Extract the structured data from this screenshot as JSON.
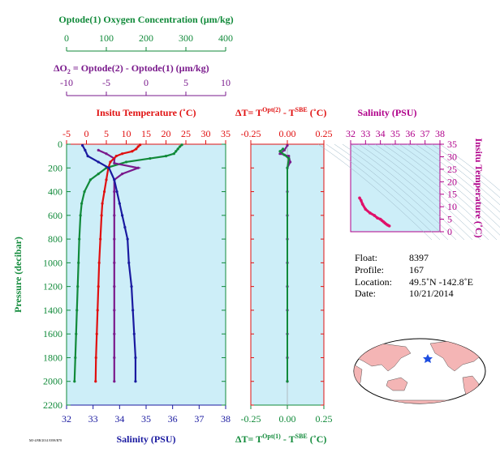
{
  "header": {
    "oxygen_axis_title": "Optode(1) Oxygen Concentration (µm/kg)",
    "delta_o2_title_a": "ΔO",
    "delta_o2_sub": "2",
    "delta_o2_title_b": " = Optode(2) - Optode(1)     (µm/kg)",
    "temp_axis_title": "Insitu Temperature (˚C)",
    "dt_top_title_a": "ΔT= T",
    "dt_top_sup_a": "Opt(2)",
    "dt_top_title_b": " - T",
    "dt_top_sup_b": "SBE",
    "dt_top_title_c": " (˚C)",
    "salinity_ts_title": "Salinity (PSU)"
  },
  "footer": {
    "salinity_axis_title": "Salinity (PSU)",
    "dt_bottom_title_a": "ΔT= T",
    "dt_bottom_sup_a": "Opt(1)",
    "dt_bottom_title_b": " - T",
    "dt_bottom_sup_b": "SBE",
    "dt_bottom_title_c": " (˚C)",
    "tiny_stamp": "MJ-4/8B/2014 8398/B78"
  },
  "left_axis": {
    "title": "Pressure (decibar)"
  },
  "ts_axis": {
    "title": "Insitu Temperature (˚C)"
  },
  "info": {
    "float_label": "Float:",
    "float_value": "8397",
    "profile_label": "Profile:",
    "profile_value": "167",
    "location_label": "Location:",
    "location_value": "49.5˚N  -142.8˚E",
    "date_label": "Date:",
    "date_value": "10/21/2014"
  },
  "colors": {
    "panel_bg": "#cdeef8",
    "oxygen": "#118a3a",
    "delta_o2": "#7a1a8c",
    "temperature": "#e01010",
    "salinity": "#1a1aa0",
    "ts_curve": "#e0106a",
    "axis_magenta": "#b0008a"
  },
  "chart_data": [
    {
      "type": "line",
      "panel": "profiles",
      "y_axis": {
        "label": "Pressure (decibar)",
        "range": [
          2200,
          0
        ],
        "ticks": [
          0,
          200,
          400,
          600,
          800,
          1000,
          1200,
          1400,
          1600,
          1800,
          2000,
          2200
        ]
      },
      "axes": {
        "oxygen": {
          "label": "Optode(1) Oxygen Concentration (µm/kg)",
          "range": [
            0,
            400
          ],
          "ticks": [
            0,
            100,
            200,
            300,
            400
          ]
        },
        "delta_o2": {
          "label": "ΔO2 = Optode(2) - Optode(1) (µm/kg)",
          "range": [
            -10,
            10
          ],
          "ticks": [
            -10,
            -5,
            0,
            5,
            10
          ]
        },
        "temperature": {
          "label": "Insitu Temperature (˚C)",
          "range": [
            -5,
            35
          ],
          "ticks": [
            -5,
            0,
            5,
            10,
            15,
            20,
            25,
            30,
            35
          ]
        },
        "salinity": {
          "label": "Salinity (PSU)",
          "range": [
            32,
            38
          ],
          "ticks": [
            32,
            33,
            34,
            35,
            36,
            37,
            38
          ]
        }
      },
      "series": [
        {
          "axis": "oxygen",
          "points": [
            [
              290,
              5
            ],
            [
              285,
              20
            ],
            [
              280,
              40
            ],
            [
              275,
              60
            ],
            [
              270,
              80
            ],
            [
              250,
              100
            ],
            [
              210,
              120
            ],
            [
              150,
              150
            ],
            [
              100,
              200
            ],
            [
              80,
              250
            ],
            [
              60,
              300
            ],
            [
              45,
              400
            ],
            [
              38,
              500
            ],
            [
              35,
              600
            ],
            [
              32,
              800
            ],
            [
              30,
              1000
            ],
            [
              28,
              1200
            ],
            [
              26,
              1400
            ],
            [
              24,
              1600
            ],
            [
              22,
              1800
            ],
            [
              20,
              2000
            ]
          ]
        },
        {
          "axis": "delta_o2",
          "points": [
            [
              -6,
              50
            ],
            [
              -5,
              80
            ],
            [
              -4,
              120
            ],
            [
              -4,
              160
            ],
            [
              -1,
              200
            ],
            [
              -3,
              250
            ],
            [
              -4,
              300
            ],
            [
              -4,
              400
            ],
            [
              -4,
              600
            ],
            [
              -4,
              800
            ],
            [
              -4,
              1000
            ],
            [
              -4,
              1200
            ],
            [
              -4,
              1400
            ],
            [
              -4,
              1600
            ],
            [
              -4,
              1800
            ],
            [
              -4,
              2000
            ]
          ]
        },
        {
          "axis": "temperature",
          "points": [
            [
              13.5,
              5
            ],
            [
              13,
              20
            ],
            [
              12.5,
              40
            ],
            [
              11.5,
              60
            ],
            [
              9,
              80
            ],
            [
              7.5,
              100
            ],
            [
              6,
              150
            ],
            [
              5.5,
              200
            ],
            [
              5,
              300
            ],
            [
              4.5,
              400
            ],
            [
              4,
              500
            ],
            [
              3.8,
              600
            ],
            [
              3.5,
              800
            ],
            [
              3.2,
              1000
            ],
            [
              3,
              1200
            ],
            [
              2.8,
              1400
            ],
            [
              2.6,
              1600
            ],
            [
              2.4,
              1800
            ],
            [
              2.3,
              2000
            ]
          ]
        },
        {
          "axis": "salinity",
          "points": [
            [
              32.6,
              10
            ],
            [
              32.7,
              50
            ],
            [
              32.8,
              100
            ],
            [
              33.2,
              150
            ],
            [
              33.6,
              200
            ],
            [
              33.8,
              300
            ],
            [
              33.9,
              400
            ],
            [
              34.0,
              500
            ],
            [
              34.1,
              600
            ],
            [
              34.2,
              700
            ],
            [
              34.3,
              800
            ],
            [
              34.35,
              1000
            ],
            [
              34.45,
              1200
            ],
            [
              34.5,
              1400
            ],
            [
              34.55,
              1600
            ],
            [
              34.6,
              1800
            ],
            [
              34.6,
              2000
            ]
          ]
        }
      ]
    },
    {
      "type": "line",
      "panel": "delta_t",
      "x_range": [
        -0.25,
        0.25
      ],
      "ticks": [
        -0.25,
        0,
        0.25
      ],
      "y_range": [
        2200,
        0
      ],
      "series": [
        {
          "name": "Opt(2) - SBE",
          "points": [
            [
              0,
              10
            ],
            [
              -0.02,
              50
            ],
            [
              -0.05,
              80
            ],
            [
              0.01,
              100
            ],
            [
              0.02,
              150
            ],
            [
              0,
              200
            ],
            [
              0,
              400
            ],
            [
              0,
              600
            ],
            [
              0,
              800
            ],
            [
              0,
              1000
            ],
            [
              0,
              1200
            ],
            [
              0,
              1400
            ],
            [
              0,
              1600
            ],
            [
              0,
              1800
            ],
            [
              0,
              2000
            ]
          ]
        },
        {
          "name": "Opt(1) - SBE",
          "points": [
            [
              -0.03,
              40
            ],
            [
              -0.05,
              60
            ],
            [
              -0.02,
              90
            ],
            [
              0.01,
              120
            ],
            [
              0,
              200
            ],
            [
              0,
              2000
            ]
          ]
        }
      ]
    },
    {
      "type": "scatter",
      "panel": "ts",
      "x_axis": {
        "label": "Salinity (PSU)",
        "range": [
          32,
          38
        ],
        "ticks": [
          32,
          33,
          34,
          35,
          36,
          37,
          38
        ]
      },
      "y_axis": {
        "label": "Insitu Temperature (˚C)",
        "range": [
          0,
          35
        ],
        "ticks": [
          0,
          5,
          10,
          15,
          20,
          25,
          30,
          35
        ]
      },
      "points": [
        [
          32.6,
          13.5
        ],
        [
          32.7,
          12.5
        ],
        [
          32.8,
          11
        ],
        [
          33.0,
          9
        ],
        [
          33.3,
          7.5
        ],
        [
          33.6,
          6.5
        ],
        [
          33.8,
          5.5
        ],
        [
          34.0,
          5
        ],
        [
          34.1,
          4.5
        ],
        [
          34.2,
          4
        ],
        [
          34.3,
          3.5
        ],
        [
          34.4,
          3
        ],
        [
          34.5,
          2.6
        ],
        [
          34.6,
          2.3
        ]
      ]
    }
  ]
}
